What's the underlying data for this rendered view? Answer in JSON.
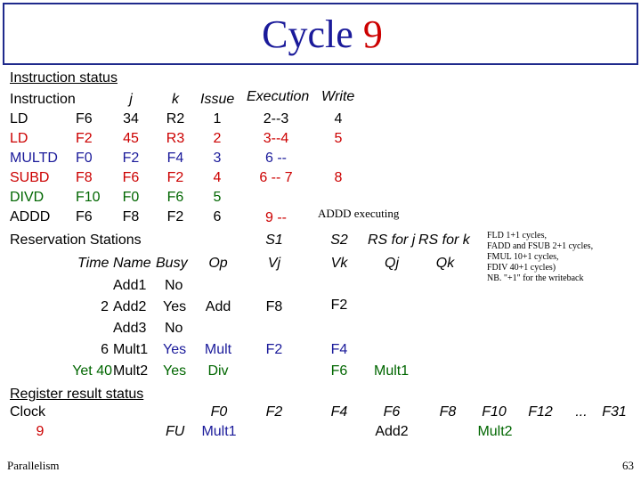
{
  "slide": {
    "title_word": "Cycle",
    "title_num": "9",
    "footer_left": "Parallelism",
    "page_number": "63"
  },
  "instruction_status": {
    "heading": "Instruction status",
    "headers": {
      "instruction": "Instruction",
      "j": "j",
      "k": "k",
      "issue": "Issue",
      "execution": "Execution",
      "write": "Write"
    },
    "rows": [
      {
        "op": "LD",
        "dest": "F6",
        "j": "34",
        "k": "R2",
        "issue": "1",
        "exec": "2--3",
        "write": "4"
      },
      {
        "op": "LD",
        "dest": "F2",
        "j": "45",
        "k": "R3",
        "issue": "2",
        "exec": "3--4",
        "write": "5"
      },
      {
        "op": "MULTD",
        "dest": "F0",
        "j": "F2",
        "k": "F4",
        "issue": "3",
        "exec": "6 --",
        "write": ""
      },
      {
        "op": "SUBD",
        "dest": "F8",
        "j": "F6",
        "k": "F2",
        "issue": "4",
        "exec": "6 -- 7",
        "write": "8"
      },
      {
        "op": "DIVD",
        "dest": "F10",
        "j": "F0",
        "k": "F6",
        "issue": "5",
        "exec": "",
        "write": ""
      },
      {
        "op": "ADDD",
        "dest": "F6",
        "j": "F8",
        "k": "F2",
        "issue": "6",
        "exec": "9 --",
        "write": ""
      }
    ],
    "addd_note": "ADDD executing"
  },
  "latency_note": [
    "FLD 1+1 cycles,",
    "FADD and FSUB 2+1 cycles,",
    "FMUL 10+1 cycles,",
    "FDIV 40+1 cycles)",
    "NB. \"+1\" for the writeback"
  ],
  "reservation_stations": {
    "heading": "Reservation Stations",
    "headers": {
      "s1": "S1",
      "s2": "S2",
      "rs_j": "RS for j",
      "rs_k": "RS for k",
      "time": "Time",
      "name": "Name",
      "busy": "Busy",
      "op": "Op",
      "vj": "Vj",
      "vk": "Vk",
      "qj": "Qj",
      "qk": "Qk"
    },
    "rows": [
      {
        "time": "",
        "name": "Add1",
        "busy": "No",
        "op": "",
        "vj": "",
        "vk": "",
        "qj": "",
        "qk": ""
      },
      {
        "time": "2",
        "name": "Add2",
        "busy": "Yes",
        "op": "Add",
        "vj": "F8",
        "vk": "F2",
        "qj": "",
        "qk": ""
      },
      {
        "time": "",
        "name": "Add3",
        "busy": "No",
        "op": "",
        "vj": "",
        "vk": "",
        "qj": "",
        "qk": ""
      },
      {
        "time": "6",
        "name": "Mult1",
        "busy": "Yes",
        "op": "Mult",
        "vj": "F2",
        "vk": "F4",
        "qj": "",
        "qk": ""
      },
      {
        "time": "Yet 40",
        "name": "Mult2",
        "busy": "Yes",
        "op": "Div",
        "vj": "",
        "vk": "F6",
        "qj": "Mult1",
        "qk": ""
      }
    ]
  },
  "register_status": {
    "heading": "Register result status",
    "clock_label": "Clock",
    "clock_value": "9",
    "fu_label": "FU",
    "registers": [
      "F0",
      "F2",
      "F4",
      "F6",
      "F8",
      "F10",
      "F12",
      "...",
      "F31"
    ],
    "values": [
      "Mult1",
      "",
      "",
      "Add2",
      "",
      "Mult2",
      "",
      "",
      ""
    ]
  }
}
